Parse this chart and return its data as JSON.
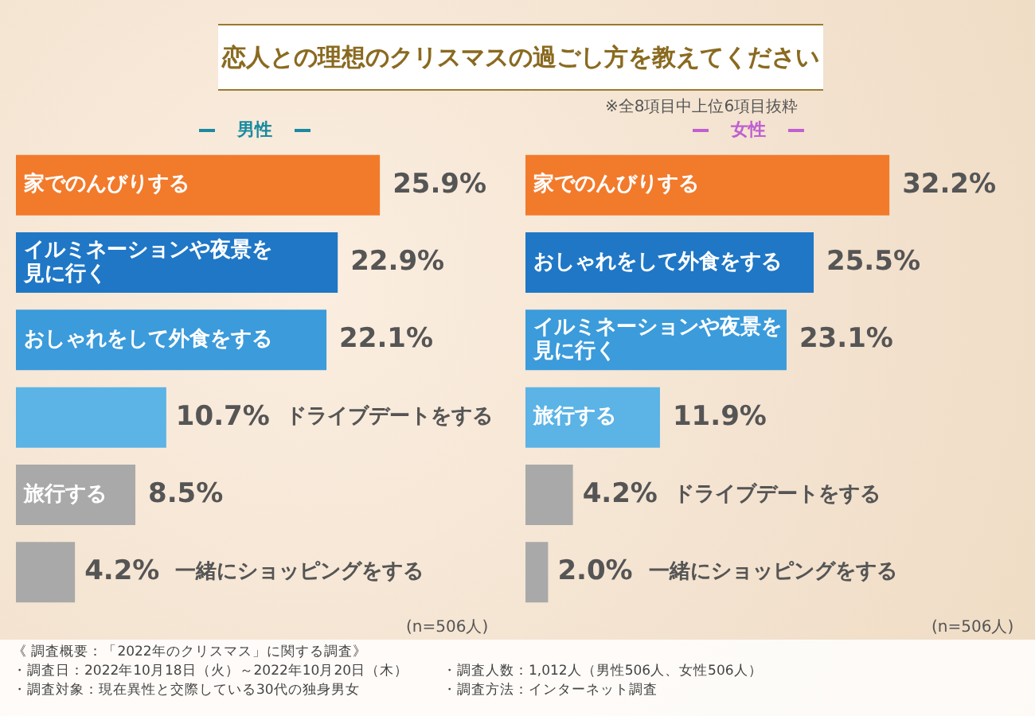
{
  "chart_data": [
    {
      "type": "bar",
      "orientation": "horizontal",
      "title": "恋人との理想のクリスマスの過ごし方を教えてください",
      "subtitle": "男性",
      "categories": [
        "家でのんびりする",
        "イルミネーションや夜景を見に行く",
        "おしゃれをして外食をする",
        "ドライブデートをする",
        "旅行する",
        "一緒にショッピングをする"
      ],
      "values": [
        25.9,
        22.9,
        22.1,
        10.7,
        8.5,
        4.2
      ],
      "value_labels": [
        "25.9%",
        "22.9%",
        "22.1%",
        "10.7%",
        "8.5%",
        "4.2%"
      ],
      "colors": [
        "#f27a2b",
        "#1f77c6",
        "#3b9bdb",
        "#5bb3e6",
        "#a9a9a9",
        "#a9a9a9"
      ],
      "legend": false,
      "annotations": [
        "※全8項目中上位6項目抜粋",
        "(n=506人)",
        "《 調査概要：「2022年のクリスマス」に関する調査》",
        "・調査日：2022年10月18日（火）～2022年10月20日（木）",
        "・調査人数：1,012人（男性506人、女性506人）",
        "・調査対象：現在異性と交際している30代の独身男女",
        "・調査方法：インターネット調査"
      ]
    },
    {
      "type": "bar",
      "orientation": "horizontal",
      "subtitle": "女性",
      "categories": [
        "家でのんびりする",
        "おしゃれをして外食をする",
        "イルミネーションや夜景を見に行く",
        "旅行する",
        "ドライブデートをする",
        "一緒にショッピングをする"
      ],
      "values": [
        32.2,
        25.5,
        23.1,
        11.9,
        4.2,
        2.0
      ],
      "value_labels": [
        "32.2%",
        "25.5%",
        "23.1%",
        "11.9%",
        "4.2%",
        "2.0%"
      ],
      "colors": [
        "#f27a2b",
        "#1f77c6",
        "#3b9bdb",
        "#5bb3e6",
        "#a9a9a9",
        "#a9a9a9"
      ],
      "legend": false,
      "annotations": [
        "(n=506人)"
      ]
    }
  ]
}
